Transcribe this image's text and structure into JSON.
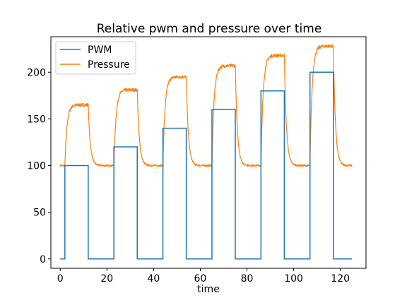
{
  "chart_data": {
    "type": "line",
    "title": "Relative pwm and pressure over time",
    "xlabel": "time",
    "ylabel": "",
    "xlim": [
      -4,
      131
    ],
    "ylim": [
      -10,
      238
    ],
    "x_ticks": [
      0,
      20,
      40,
      60,
      80,
      100,
      120
    ],
    "y_ticks": [
      0,
      50,
      100,
      150,
      200
    ],
    "grid": false,
    "legend_position": "top-left",
    "series": [
      {
        "name": "PWM",
        "color": "#1f77b4",
        "style": "step",
        "x": [
          0,
          2,
          2,
          12,
          12,
          23,
          23,
          33,
          33,
          44,
          44,
          54,
          54,
          65,
          65,
          75,
          75,
          86,
          86,
          96,
          96,
          107,
          107,
          117,
          117,
          125
        ],
        "y": [
          0,
          0,
          100,
          100,
          0,
          0,
          120,
          120,
          0,
          0,
          140,
          140,
          0,
          0,
          160,
          160,
          0,
          0,
          180,
          180,
          0,
          0,
          200,
          200,
          0,
          0
        ]
      },
      {
        "name": "Pressure",
        "color": "#ff7f0e",
        "style": "noisy-response",
        "baseline": 100,
        "steps": [
          {
            "start": 2,
            "end": 12,
            "plateau": 165
          },
          {
            "start": 23,
            "end": 33,
            "plateau": 181
          },
          {
            "start": 44,
            "end": 54,
            "plateau": 195
          },
          {
            "start": 65,
            "end": 75,
            "plateau": 207
          },
          {
            "start": 86,
            "end": 96,
            "plateau": 218
          },
          {
            "start": 107,
            "end": 117,
            "plateau": 228
          }
        ],
        "x_end": 125
      }
    ]
  }
}
